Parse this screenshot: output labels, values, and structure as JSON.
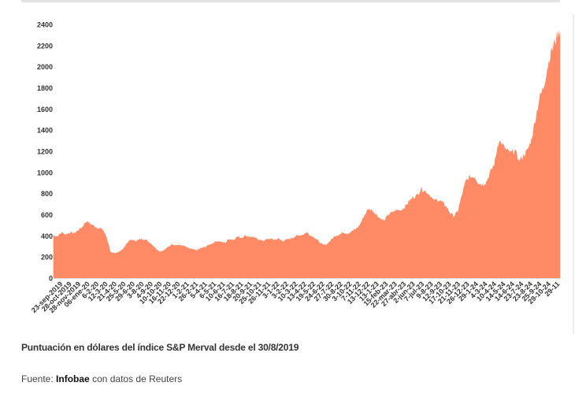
{
  "caption": "Puntuación en dólares del índice S&P Merval desde el 30/8/2019",
  "source": {
    "prefix": "Fuente:",
    "brand": "Infobae",
    "suffix": "con datos de Reuters"
  },
  "colors": {
    "area": "#ff8a65",
    "axis_text": "#333333",
    "baseline": "#dddddd"
  },
  "chart_data": {
    "type": "area",
    "title": "",
    "xlabel": "",
    "ylabel": "",
    "ylim": [
      0,
      2400
    ],
    "yticks": [
      0,
      200,
      400,
      600,
      800,
      1000,
      1200,
      1400,
      1600,
      1800,
      2000,
      2200,
      2400
    ],
    "grid": false,
    "legend": "none",
    "x_ticks": [
      "23-sep-2019",
      "28-oct-2019",
      "28-nov-2019",
      "06-ene-20",
      "6-2-20",
      "12-3-20",
      "21-4-20",
      "25-5-20",
      "29-6-20",
      "3-8-20",
      "4-9-20",
      "10-10-20",
      "16-11-20",
      "22-12-20",
      "1-2-21",
      "26-2-21",
      "5-4-21",
      "6-5-21",
      "10-6-21",
      "16-7-21",
      "18-8-21",
      "20-9-21",
      "25-10-21",
      "26-11-21",
      "3-1-22",
      "3-2-22",
      "10-3-22",
      "13-4-22",
      "19-5-22",
      "24-6-22",
      "27-7-22",
      "30-8-22",
      "3-10-22",
      "7-11-22",
      "13-12-22",
      "13-1-23",
      "15-feb-23",
      "22-mar-23",
      "27-abr-23",
      "2-jun-23",
      "7-jul-23",
      "9-8-23",
      "12-9-23",
      "17-10-23",
      "21-11-23",
      "26-12-23",
      "29-1-24",
      "4-3-24",
      "10-4-24",
      "14-5-24",
      "14-6-24",
      "23-7-24",
      "23-8-24",
      "25-9-24",
      "29-10-24",
      "29-11"
    ],
    "series": [
      {
        "values": [
          400,
          395,
          430,
          410,
          430,
          420,
          450,
          480,
          535,
          510,
          490,
          470,
          460,
          380,
          240,
          230,
          250,
          270,
          330,
          360,
          350,
          360,
          370,
          350,
          320,
          280,
          250,
          260,
          290,
          320,
          310,
          310,
          300,
          280,
          270,
          260,
          280,
          290,
          310,
          330,
          350,
          340,
          330,
          370,
          360,
          390,
          380,
          400,
          390,
          380,
          370,
          350,
          360,
          370,
          360,
          370,
          350,
          360,
          370,
          390,
          400,
          410,
          430,
          400,
          380,
          340,
          310,
          320,
          360,
          400,
          410,
          430,
          420,
          440,
          460,
          500,
          580,
          650,
          640,
          600,
          560,
          540,
          600,
          620,
          640,
          640,
          670,
          720,
          760,
          780,
          840,
          820,
          790,
          730,
          740,
          720,
          680,
          620,
          580,
          630,
          780,
          920,
          950,
          960,
          900,
          880,
          910,
          1000,
          1080,
          1300,
          1250,
          1200,
          1180,
          1200,
          1100,
          1150,
          1200,
          1300,
          1500,
          1700,
          1800,
          2000,
          2150,
          2250,
          2330
        ]
      }
    ]
  }
}
